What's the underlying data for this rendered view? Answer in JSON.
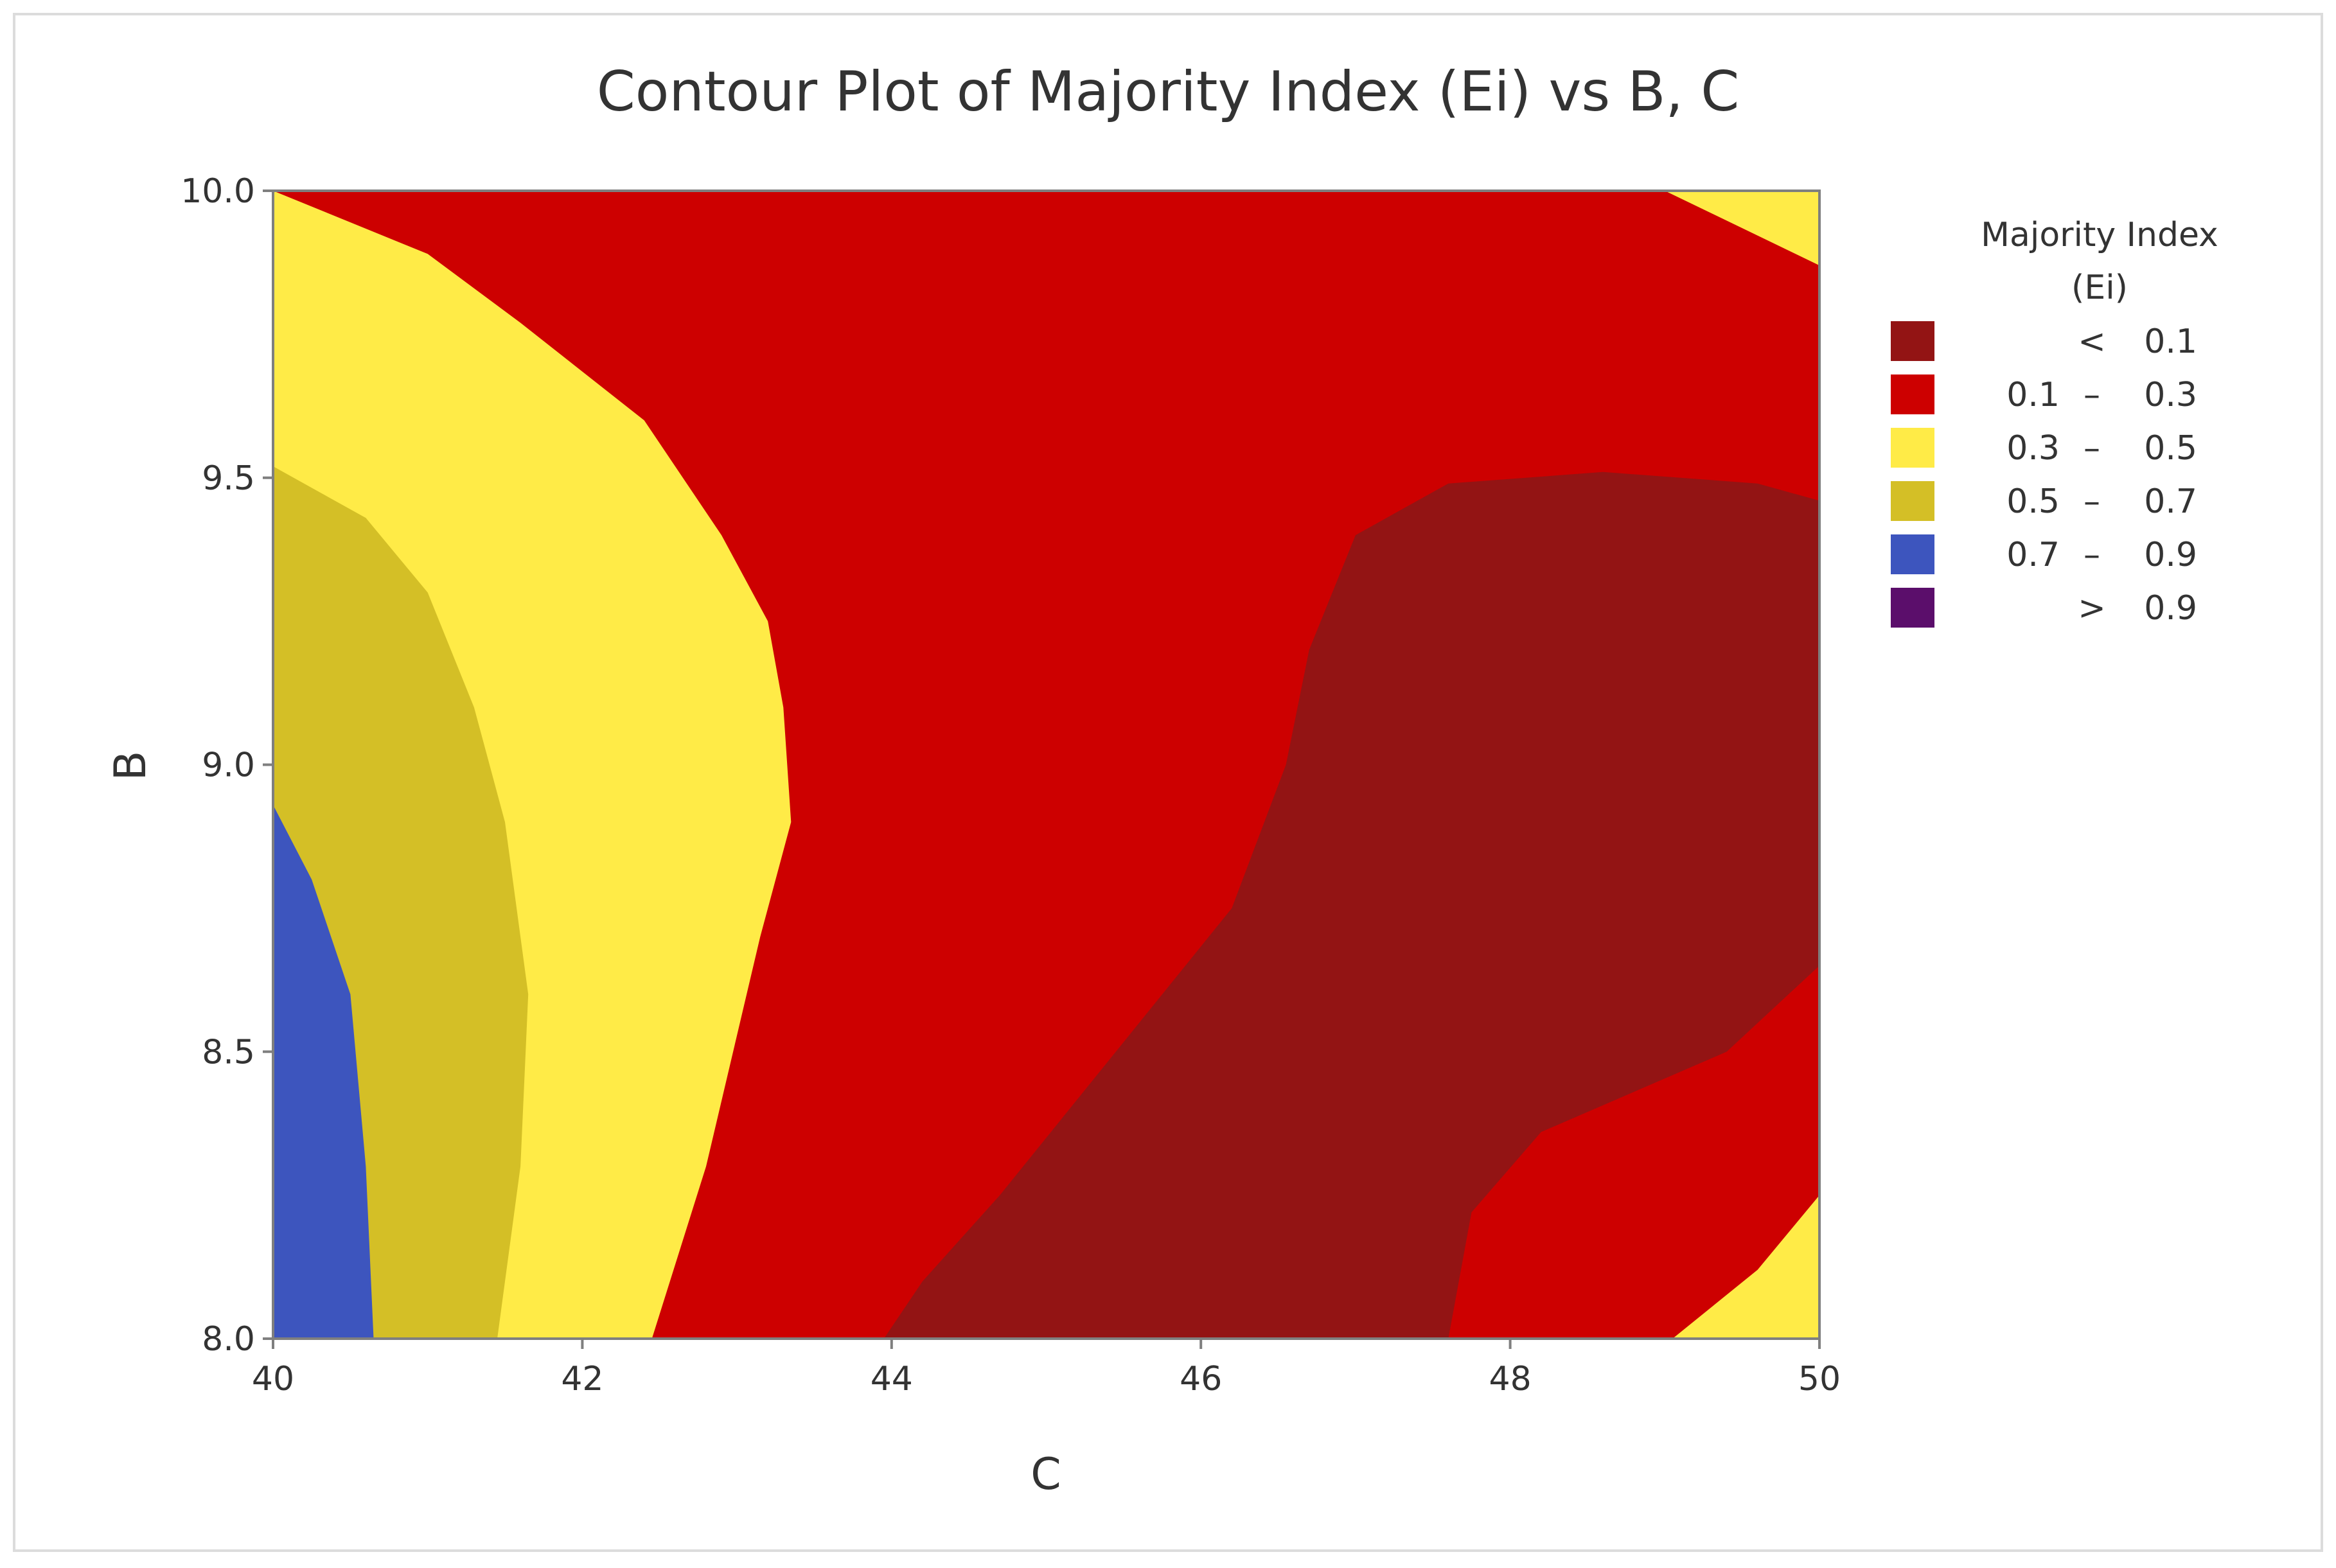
{
  "chart_data": {
    "type": "contour",
    "title": "Contour Plot of Majority Index (Ei) vs B, C",
    "xlabel": "C",
    "ylabel": "B",
    "xlim": [
      40,
      50
    ],
    "ylim": [
      8.0,
      10.0
    ],
    "x_ticks": [
      "40",
      "42",
      "44",
      "46",
      "48",
      "50"
    ],
    "y_ticks": [
      "8.0",
      "8.5",
      "9.0",
      "9.5",
      "10.0"
    ],
    "grid": false,
    "legend_position": "right",
    "legend": {
      "title_line1": "Majority Index",
      "title_line2": "(Ei)",
      "items": [
        {
          "left": "",
          "sep": "<",
          "right": "0.1",
          "color": "#931414"
        },
        {
          "left": "0.1",
          "sep": "–",
          "right": "0.3",
          "color": "#cd0000"
        },
        {
          "left": "0.3",
          "sep": "–",
          "right": "0.5",
          "color": "#ffeb47"
        },
        {
          "left": "0.5",
          "sep": "–",
          "right": "0.7",
          "color": "#d4bf26"
        },
        {
          "left": "0.7",
          "sep": "–",
          "right": "0.9",
          "color": "#3d55be"
        },
        {
          "left": "",
          "sep": ">",
          "right": "0.9",
          "color": "#5b0e6b"
        }
      ]
    },
    "regions": [
      {
        "range": "0.1 – 0.3",
        "color": "#cd0000",
        "points": [
          [
            40,
            8.0
          ],
          [
            50,
            8.0
          ],
          [
            50,
            10.0
          ],
          [
            40,
            10.0
          ]
        ]
      },
      {
        "range": "0.3 – 0.5",
        "color": "#ffeb47",
        "points": [
          [
            40,
            8.0
          ],
          [
            42.45,
            8.0
          ],
          [
            42.8,
            8.3
          ],
          [
            43.15,
            8.7
          ],
          [
            43.35,
            8.9
          ],
          [
            43.3,
            9.1
          ],
          [
            43.2,
            9.25
          ],
          [
            42.9,
            9.4
          ],
          [
            42.4,
            9.6
          ],
          [
            41.6,
            9.77
          ],
          [
            41,
            9.89
          ],
          [
            40,
            10.0
          ]
        ]
      },
      {
        "range": "0.5 – 0.7",
        "color": "#d4bf26",
        "points": [
          [
            40,
            8.0
          ],
          [
            41.45,
            8.0
          ],
          [
            41.6,
            8.3
          ],
          [
            41.65,
            8.6
          ],
          [
            41.5,
            8.9
          ],
          [
            41.3,
            9.1
          ],
          [
            41,
            9.3
          ],
          [
            40.6,
            9.43
          ],
          [
            40,
            9.52
          ]
        ]
      },
      {
        "range": "0.7 – 0.9",
        "color": "#3d55be",
        "points": [
          [
            40,
            8.0
          ],
          [
            40.65,
            8.0
          ],
          [
            40.6,
            8.3
          ],
          [
            40.5,
            8.6
          ],
          [
            40.25,
            8.8
          ],
          [
            40,
            8.93
          ]
        ]
      },
      {
        "range": "< 0.1",
        "color": "#931414",
        "points": [
          [
            43.95,
            8.0
          ],
          [
            47.6,
            8.0
          ],
          [
            47.75,
            8.22
          ],
          [
            48.2,
            8.36
          ],
          [
            49.4,
            8.5
          ],
          [
            50,
            8.65
          ],
          [
            50,
            9.46
          ],
          [
            49.6,
            9.49
          ],
          [
            48.6,
            9.51
          ],
          [
            47.6,
            9.49
          ],
          [
            47,
            9.4
          ],
          [
            46.7,
            9.2
          ],
          [
            46.55,
            9.0
          ],
          [
            46.2,
            8.75
          ],
          [
            45.6,
            8.55
          ],
          [
            44.7,
            8.25
          ],
          [
            44.2,
            8.1
          ]
        ]
      },
      {
        "range": "0.3 – 0.5",
        "color": "#ffeb47",
        "points": [
          [
            49.05,
            8.0
          ],
          [
            50,
            8.0
          ],
          [
            50,
            8.25
          ],
          [
            49.6,
            8.12
          ]
        ]
      },
      {
        "range": "0.3 – 0.5",
        "color": "#ffeb47",
        "points": [
          [
            49,
            10.0
          ],
          [
            50,
            10.0
          ],
          [
            50,
            9.87
          ]
        ]
      }
    ]
  }
}
